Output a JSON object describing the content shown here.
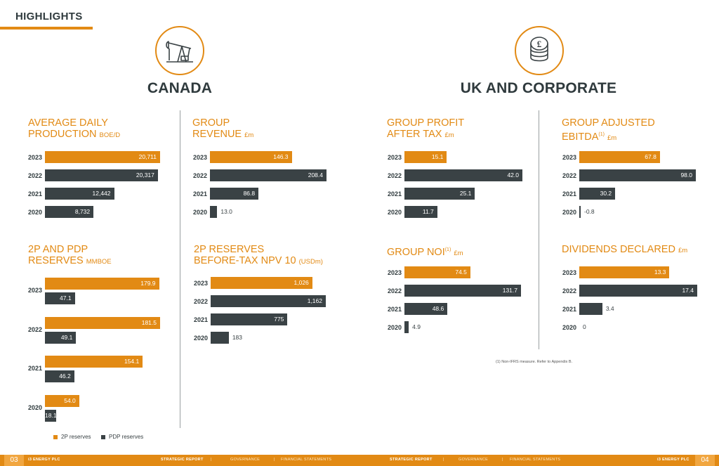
{
  "page": {
    "title": "HIGHLIGHTS"
  },
  "sections": {
    "canada": "CANADA",
    "uk": "UK AND CORPORATE"
  },
  "colors": {
    "orange": "#e28a14",
    "dark": "#3a4245"
  },
  "charts": {
    "adp": {
      "title_1": "AVERAGE DAILY",
      "title_2": "PRODUCTION",
      "unit": "BOE/D",
      "rows": [
        {
          "year": "2023",
          "label": "20,711"
        },
        {
          "year": "2022",
          "label": "20,317"
        },
        {
          "year": "2021",
          "label": "12,442"
        },
        {
          "year": "2020",
          "label": "8,732"
        }
      ]
    },
    "rev": {
      "title_1": "GROUP",
      "title_2": "REVENUE",
      "unit": "£m",
      "rows": [
        {
          "year": "2023",
          "label": "146.3"
        },
        {
          "year": "2022",
          "label": "208.4"
        },
        {
          "year": "2021",
          "label": "86.8"
        },
        {
          "year": "2020",
          "label": "13.0"
        }
      ]
    },
    "gp": {
      "title_1": "GROUP PROFIT",
      "title_2": "AFTER TAX",
      "unit": "£m",
      "rows": [
        {
          "year": "2023",
          "label": "15.1"
        },
        {
          "year": "2022",
          "label": "42.0"
        },
        {
          "year": "2021",
          "label": "25.1"
        },
        {
          "year": "2020",
          "label": "11.7"
        }
      ]
    },
    "ebitda": {
      "title_1": "GROUP ADJUSTED",
      "title_2": "EBITDA",
      "sup": "(1)",
      "unit": "£m",
      "rows": [
        {
          "year": "2023",
          "label": "67.8"
        },
        {
          "year": "2022",
          "label": "98.0"
        },
        {
          "year": "2021",
          "label": "30.2"
        },
        {
          "year": "2020",
          "label": "-0.8"
        }
      ]
    },
    "res": {
      "title_1": "2P AND PDP",
      "title_2": "RESERVES",
      "unit": "MMBOE",
      "rows": [
        {
          "year": "2023",
          "p2": "179.9",
          "pdp": "47.1"
        },
        {
          "year": "2022",
          "p2": "181.5",
          "pdp": "49.1"
        },
        {
          "year": "2021",
          "p2": "154.1",
          "pdp": "46.2"
        },
        {
          "year": "2020",
          "p2": "54.0",
          "pdp": "18.1"
        }
      ]
    },
    "npv": {
      "title_1": "2P RESERVES",
      "title_2": "BEFORE-TAX NPV 10",
      "unit": "(USDm)",
      "rows": [
        {
          "year": "2023",
          "label": "1,026"
        },
        {
          "year": "2022",
          "label": "1,162"
        },
        {
          "year": "2021",
          "label": "775"
        },
        {
          "year": "2020",
          "label": "183"
        }
      ]
    },
    "noi": {
      "title_1": "GROUP NOI",
      "sup": "(1)",
      "unit": "£m",
      "rows": [
        {
          "year": "2023",
          "label": "74.5"
        },
        {
          "year": "2022",
          "label": "131.7"
        },
        {
          "year": "2021",
          "label": "48.6"
        },
        {
          "year": "2020",
          "label": "4.9"
        }
      ]
    },
    "div": {
      "title_1": "DIVIDENDS DECLARED",
      "unit": "£m",
      "rows": [
        {
          "year": "2023",
          "label": "13.3"
        },
        {
          "year": "2022",
          "label": "17.4"
        },
        {
          "year": "2021",
          "label": "3.4"
        },
        {
          "year": "2020",
          "label": "0"
        }
      ]
    }
  },
  "chart_data": [
    {
      "type": "bar",
      "title": "AVERAGE DAILY PRODUCTION BOE/D",
      "categories": [
        "2023",
        "2022",
        "2021",
        "2020"
      ],
      "values": [
        20711,
        20317,
        12442,
        8732
      ]
    },
    {
      "type": "bar",
      "title": "GROUP REVENUE £m",
      "categories": [
        "2023",
        "2022",
        "2021",
        "2020"
      ],
      "values": [
        146.3,
        208.4,
        86.8,
        13.0
      ]
    },
    {
      "type": "bar",
      "title": "GROUP PROFIT AFTER TAX £m",
      "categories": [
        "2023",
        "2022",
        "2021",
        "2020"
      ],
      "values": [
        15.1,
        42.0,
        25.1,
        11.7
      ]
    },
    {
      "type": "bar",
      "title": "GROUP ADJUSTED EBITDA(1) £m",
      "categories": [
        "2023",
        "2022",
        "2021",
        "2020"
      ],
      "values": [
        67.8,
        98.0,
        30.2,
        -0.8
      ]
    },
    {
      "type": "bar",
      "title": "2P AND PDP RESERVES MMBOE",
      "categories": [
        "2023",
        "2022",
        "2021",
        "2020"
      ],
      "series": [
        {
          "name": "2P reserves",
          "values": [
            179.9,
            181.5,
            154.1,
            54.0
          ]
        },
        {
          "name": "PDP reserves",
          "values": [
            47.1,
            49.1,
            46.2,
            18.1
          ]
        }
      ]
    },
    {
      "type": "bar",
      "title": "2P RESERVES BEFORE-TAX NPV 10 (USDm)",
      "categories": [
        "2023",
        "2022",
        "2021",
        "2020"
      ],
      "values": [
        1026,
        1162,
        775,
        183
      ]
    },
    {
      "type": "bar",
      "title": "GROUP NOI(1) £m",
      "categories": [
        "2023",
        "2022",
        "2021",
        "2020"
      ],
      "values": [
        74.5,
        131.7,
        48.6,
        4.9
      ]
    },
    {
      "type": "bar",
      "title": "DIVIDENDS DECLARED £m",
      "categories": [
        "2023",
        "2022",
        "2021",
        "2020"
      ],
      "values": [
        13.3,
        17.4,
        3.4,
        0
      ]
    }
  ],
  "legend": {
    "p2": "2P reserves",
    "pdp": "PDP reserves"
  },
  "footnote": "(1) Non-IFRS measure. Refer to Appendix B.",
  "footer": {
    "page_left": "03",
    "page_right": "04",
    "company_left": "i3 ENERGY PLC",
    "company_right": "i3 ENERGY PLC",
    "nav": [
      "STRATEGIC REPORT",
      "GOVERNANCE",
      "FINANCIAL STATEMENTS"
    ]
  }
}
